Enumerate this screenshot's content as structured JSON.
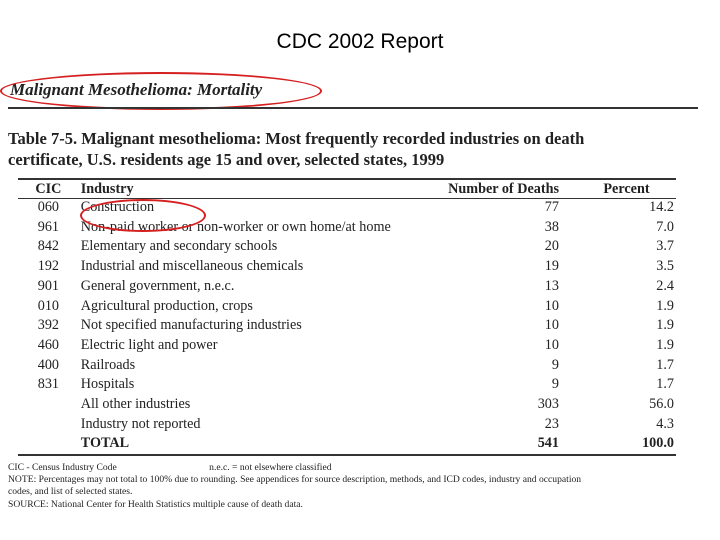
{
  "slide": {
    "title": "CDC 2002 Report"
  },
  "document": {
    "section_heading": "Malignant Mesothelioma: Mortality",
    "table_caption_line1": "Table 7-5.  Malignant mesothelioma:  Most frequently recorded industries on death",
    "table_caption_line2": "certificate, U.S. residents age 15 and over, selected states, 1999",
    "columns": {
      "cic": "CIC",
      "industry": "Industry",
      "deaths": "Number of Deaths",
      "percent": "Percent"
    },
    "rows": [
      {
        "cic": "060",
        "industry": "Construction",
        "deaths": "77",
        "percent": "14.2"
      },
      {
        "cic": "961",
        "industry": "Non-paid worker or non-worker or own home/at home",
        "deaths": "38",
        "percent": "7.0"
      },
      {
        "cic": "842",
        "industry": "Elementary and secondary schools",
        "deaths": "20",
        "percent": "3.7"
      },
      {
        "cic": "192",
        "industry": "Industrial and miscellaneous chemicals",
        "deaths": "19",
        "percent": "3.5"
      },
      {
        "cic": "901",
        "industry": "General government, n.e.c.",
        "deaths": "13",
        "percent": "2.4"
      },
      {
        "cic": "010",
        "industry": "Agricultural production, crops",
        "deaths": "10",
        "percent": "1.9"
      },
      {
        "cic": "392",
        "industry": "Not specified manufacturing industries",
        "deaths": "10",
        "percent": "1.9"
      },
      {
        "cic": "460",
        "industry": "Electric light and power",
        "deaths": "10",
        "percent": "1.9"
      },
      {
        "cic": "400",
        "industry": "Railroads",
        "deaths": "9",
        "percent": "1.7"
      },
      {
        "cic": "831",
        "industry": "Hospitals",
        "deaths": "9",
        "percent": "1.7"
      },
      {
        "cic": "",
        "industry": "All other industries",
        "deaths": "303",
        "percent": "56.0"
      },
      {
        "cic": "",
        "industry": "Industry not reported",
        "deaths": "23",
        "percent": "4.3"
      }
    ],
    "total": {
      "label": "TOTAL",
      "deaths": "541",
      "percent": "100.0"
    },
    "footnotes": {
      "cic_def": "CIC - Census Industry Code",
      "nec_def": "n.e.c. = not elsewhere classified",
      "note_line1": "NOTE:  Percentages may not total to 100% due to rounding.  See appendices for source description, methods, and ICD codes, industry and occupation",
      "note_line2": "codes, and list of selected states.",
      "source": "SOURCE:  National Center for Health Statistics multiple cause of death data."
    }
  },
  "highlight_color": "#d62020"
}
